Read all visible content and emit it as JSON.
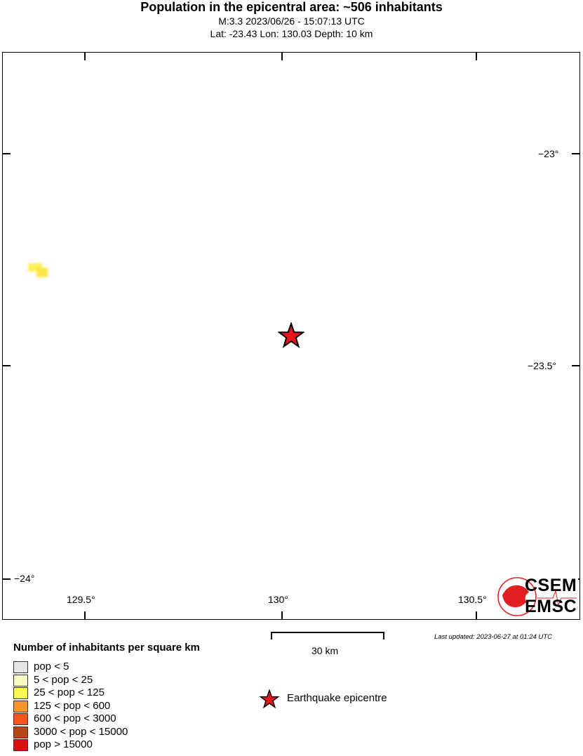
{
  "header": {
    "title": "Population in the epicentral area: ~506 inhabitants",
    "line1": "M:3.3 2023/06/26 - 15:07:13 UTC",
    "line2": "Lat: -23.43 Lon: 130.03 Depth: 10 km"
  },
  "map": {
    "lon_labels": [
      "129.5°",
      "130°",
      "130.5°"
    ],
    "lat_labels": [
      "−23°",
      "−23.5°",
      "−24°"
    ],
    "epicentre": {
      "lat": -23.43,
      "lon": 130.03
    },
    "star_color": "#e8141b"
  },
  "scale": {
    "label": "30 km"
  },
  "updated": "Last updated: 2023-06-27 at 01:24 UTC",
  "logo": {
    "line1": "CSEM",
    "line2": "EMSC"
  },
  "legend": {
    "title": "Number of inhabitants per square km",
    "items": [
      {
        "label": "pop < 5",
        "color": "#e6e6e6"
      },
      {
        "label": "5 < pop < 25",
        "color": "#fbf9c6"
      },
      {
        "label": "25 < pop < 125",
        "color": "#fdf85a"
      },
      {
        "label": "125 < pop < 600",
        "color": "#f9952c"
      },
      {
        "label": "600 < pop < 3000",
        "color": "#f8561b"
      },
      {
        "label": "3000 < pop < 15000",
        "color": "#b84615"
      },
      {
        "label": "pop > 15000",
        "color": "#d8100f"
      }
    ],
    "epicentre_label": "Earthquake epicentre"
  }
}
